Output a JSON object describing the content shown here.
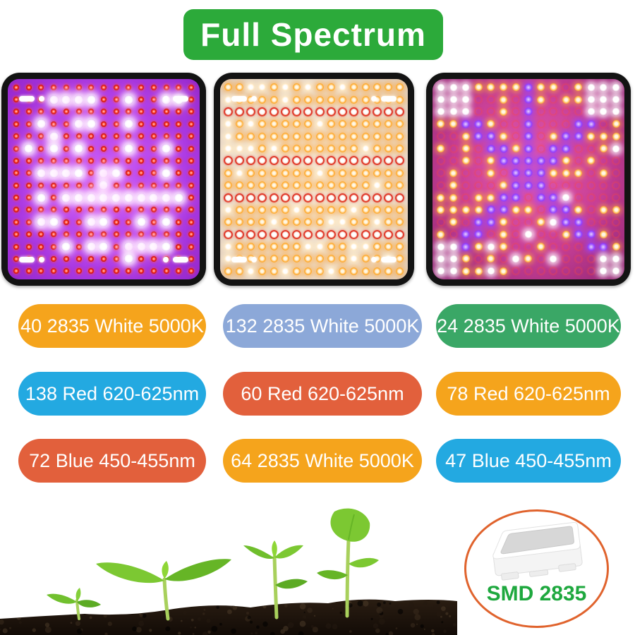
{
  "banner": {
    "label": "Full Spectrum",
    "bg": "#2caa3a",
    "text_color": "#ffffff"
  },
  "panels": [
    {
      "name": "purple-led-panel",
      "pattern": "purple",
      "cols": 15,
      "rows": 16,
      "connectors": true,
      "board_gradient": "radial-gradient(ellipse at 50% 50%, #cb5bf5 0%, #b13ee8 55%, #9527cc 100%)",
      "palette": {
        "red": "#ff3522",
        "red_dark": "#b01010",
        "white": "#ffffff"
      }
    },
    {
      "name": "warm-white-led-panel",
      "pattern": "warm",
      "cols": 16,
      "rows": 16,
      "connectors": true,
      "board_gradient": "radial-gradient(ellipse at 50% 50%, #f5e6d3 0%, #eadaca 70%, #e0ccba 100%)",
      "palette": {
        "amber": "#ffa726",
        "white": "#fff6e8",
        "ring": "#e23b2e"
      }
    },
    {
      "name": "mixed-color-led-panel",
      "pattern": "mixed",
      "cols": 15,
      "rows": 16,
      "connectors": false,
      "board_gradient": "radial-gradient(ellipse at 50% 45%, #e65aad 0%, #c73f96 55%, #8f2573 100%)",
      "palette": {
        "red": "#ff2020",
        "amber": "#ffb340",
        "white": "#ffffff",
        "purple": "#9140ff"
      }
    }
  ],
  "pills": [
    {
      "text": "40 2835 White 5000K",
      "bg": "#f5a41c"
    },
    {
      "text": "132 2835 White 5000K",
      "bg": "#8ca8d8"
    },
    {
      "text": "24 2835 White 5000K",
      "bg": "#3aa766"
    },
    {
      "text": "138 Red 620-625nm",
      "bg": "#23a9e1"
    },
    {
      "text": "60 Red 620-625nm",
      "bg": "#e2603c"
    },
    {
      "text": "78 Red 620-625nm",
      "bg": "#f5a41c"
    },
    {
      "text": "72 Blue 450-455nm",
      "bg": "#e2603c"
    },
    {
      "text": "64 2835 White 5000K",
      "bg": "#f5a41c"
    },
    {
      "text": "47 Blue 450-455nm",
      "bg": "#23a9e1"
    }
  ],
  "smd": {
    "label": "SMD 2835",
    "text_color": "#1ea83e",
    "ring_color": "#e0632d"
  }
}
